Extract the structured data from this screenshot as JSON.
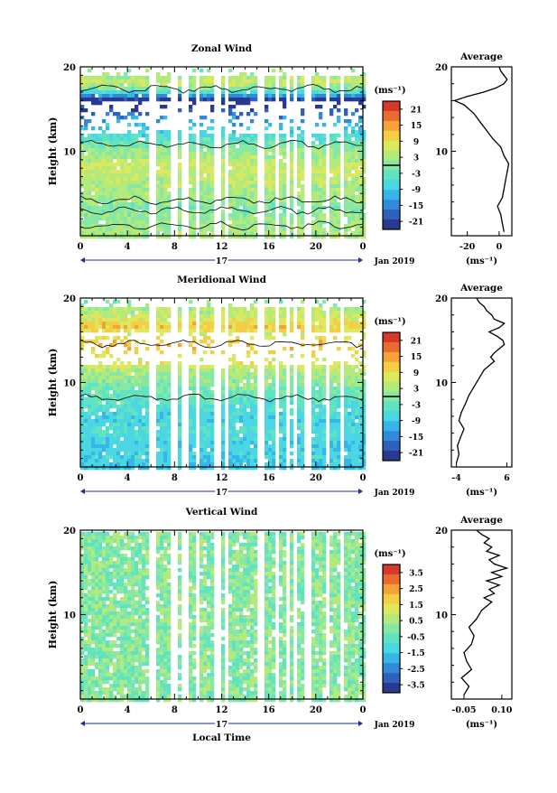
{
  "chart_data": [
    {
      "type": "heatmap",
      "title": "Zonal Wind",
      "ylabel": "Height (km)",
      "ylim": [
        0,
        20
      ],
      "yticks": [
        "20",
        "10"
      ],
      "xlim": [
        0,
        24
      ],
      "xticks": [
        "0",
        "4",
        "8",
        "12",
        "16",
        "20",
        "0"
      ],
      "xlabel": "",
      "day_label": "17",
      "date_label": "Jan 2019",
      "colorbar": {
        "unit": "(ms⁻¹)",
        "range": [
          -24,
          24
        ],
        "ticks": [
          "21",
          "15",
          "9",
          "3",
          "-3",
          "-9",
          "-15",
          "-21"
        ],
        "contour_level": 0
      },
      "profile": {
        "title": "Average",
        "xlim": [
          -30,
          8
        ],
        "xticks": [
          "-20",
          "0"
        ],
        "xlabel": "(ms⁻¹)",
        "yticks": [
          "20",
          "10"
        ],
        "heights": [
          0.5,
          1.5,
          2.5,
          3.5,
          4.5,
          5.5,
          6.5,
          7.5,
          8.5,
          9.5,
          10.5,
          11.5,
          12.5,
          13.5,
          14.5,
          15.5,
          16,
          16.5,
          17,
          17.5,
          18,
          18.5,
          19,
          19.5,
          20
        ],
        "values": [
          3,
          2,
          1,
          -1,
          2,
          3,
          4,
          5,
          6,
          3,
          1,
          -4,
          -8,
          -12,
          -16,
          -22,
          -28,
          -20,
          -10,
          -2,
          3,
          5,
          3,
          1,
          0
        ]
      }
    },
    {
      "type": "heatmap",
      "title": "Meridional Wind",
      "ylabel": "Height (km)",
      "ylim": [
        0,
        20
      ],
      "yticks": [
        "20",
        "10"
      ],
      "xlim": [
        0,
        24
      ],
      "xticks": [
        "0",
        "4",
        "8",
        "12",
        "16",
        "20",
        "0"
      ],
      "xlabel": "",
      "day_label": "17",
      "date_label": "Jan 2019",
      "colorbar": {
        "unit": "(ms⁻¹)",
        "range": [
          -24,
          24
        ],
        "ticks": [
          "21",
          "15",
          "9",
          "3",
          "-3",
          "-9",
          "-15",
          "-21"
        ],
        "contour_level": 0
      },
      "profile": {
        "title": "Average",
        "xlim": [
          -5,
          7
        ],
        "xticks": [
          "-4",
          "6"
        ],
        "xlabel": "(ms⁻¹)",
        "yticks": [
          "20",
          "10"
        ],
        "heights": [
          0.5,
          1.5,
          2.5,
          3.5,
          4.5,
          5.5,
          6.5,
          7.5,
          8.5,
          9.5,
          10.5,
          11.5,
          12,
          12.5,
          13,
          13.5,
          14,
          14.5,
          15,
          15.5,
          16,
          16.5,
          17,
          17.5,
          18,
          18.5,
          19,
          19.5,
          20
        ],
        "values": [
          -4,
          -3.5,
          -3.8,
          -3.2,
          -2.5,
          -3.5,
          -3,
          -2.2,
          -1.5,
          -0.5,
          0.5,
          1.5,
          2.5,
          3.5,
          2.8,
          3.5,
          4.5,
          5.5,
          5.2,
          4,
          2.5,
          4.5,
          5.5,
          3.5,
          3,
          2,
          1.5,
          0.5,
          0
        ]
      }
    },
    {
      "type": "heatmap",
      "title": "Vertical Wind",
      "ylabel": "Height (km)",
      "ylim": [
        0,
        20
      ],
      "yticks": [
        "20",
        "10"
      ],
      "xlim": [
        0,
        24
      ],
      "xticks": [
        "0",
        "4",
        "8",
        "12",
        "16",
        "20",
        "0"
      ],
      "xlabel": "Local Time",
      "day_label": "17",
      "date_label": "Jan 2019",
      "colorbar": {
        "unit": "(ms⁻¹)",
        "range": [
          -4,
          4
        ],
        "ticks": [
          "3.5",
          "2.5",
          "1.5",
          "0.5",
          "-0.5",
          "-1.5",
          "-2.5",
          "-3.5"
        ],
        "contour_level": null
      },
      "profile": {
        "title": "Average",
        "xlim": [
          -0.1,
          0.14
        ],
        "xticks": [
          "-0.05",
          "0.10"
        ],
        "xlabel": "(ms⁻¹)",
        "yticks": [
          "20",
          "10"
        ],
        "heights": [
          0.5,
          1.5,
          2.5,
          3.5,
          4.5,
          5.5,
          6.5,
          7.5,
          8.5,
          9.5,
          10.5,
          11,
          11.5,
          12,
          12.5,
          13,
          13.5,
          14,
          14.5,
          15,
          15.5,
          16,
          16.5,
          17,
          17.5,
          18,
          18.5,
          19,
          19.5,
          20
        ],
        "values": [
          -0.05,
          -0.03,
          -0.06,
          -0.02,
          -0.04,
          -0.05,
          -0.02,
          -0.01,
          -0.03,
          0.0,
          0.02,
          0.04,
          0.06,
          0.03,
          0.07,
          0.05,
          0.09,
          0.04,
          0.1,
          0.06,
          0.12,
          0.07,
          0.05,
          0.09,
          0.04,
          0.06,
          0.03,
          0.05,
          0.02,
          0.0
        ]
      }
    }
  ]
}
